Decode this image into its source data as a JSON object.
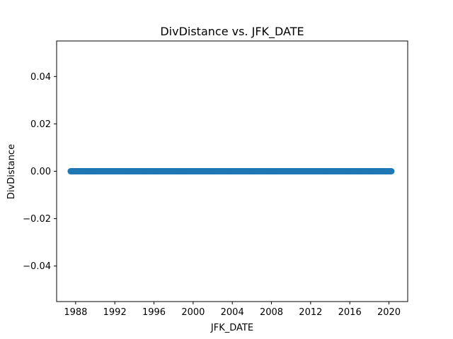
{
  "chart_data": {
    "type": "scatter",
    "title": "DivDistance vs. JFK_DATE",
    "xlabel": "JFK_DATE",
    "ylabel": "DivDistance",
    "x_axis_type": "date",
    "x_range": [
      "1987-07-01",
      "2020-04-01"
    ],
    "xlim": [
      "1986-01-22",
      "2021-12-01"
    ],
    "ylim": [
      -0.055,
      0.055
    ],
    "x_ticks": [
      "1988",
      "1992",
      "1996",
      "2000",
      "2004",
      "2008",
      "2012",
      "2016",
      "2020"
    ],
    "y_ticks": [
      -0.04,
      -0.02,
      0.0,
      0.02,
      0.04
    ],
    "y_tick_labels": [
      "−0.04",
      "−0.02",
      "0.00",
      "0.02",
      "0.04"
    ],
    "point_frequency": "monthly",
    "y_value": 0.0,
    "grid": false,
    "legend": "none",
    "marker_color": "#1f77b4"
  }
}
